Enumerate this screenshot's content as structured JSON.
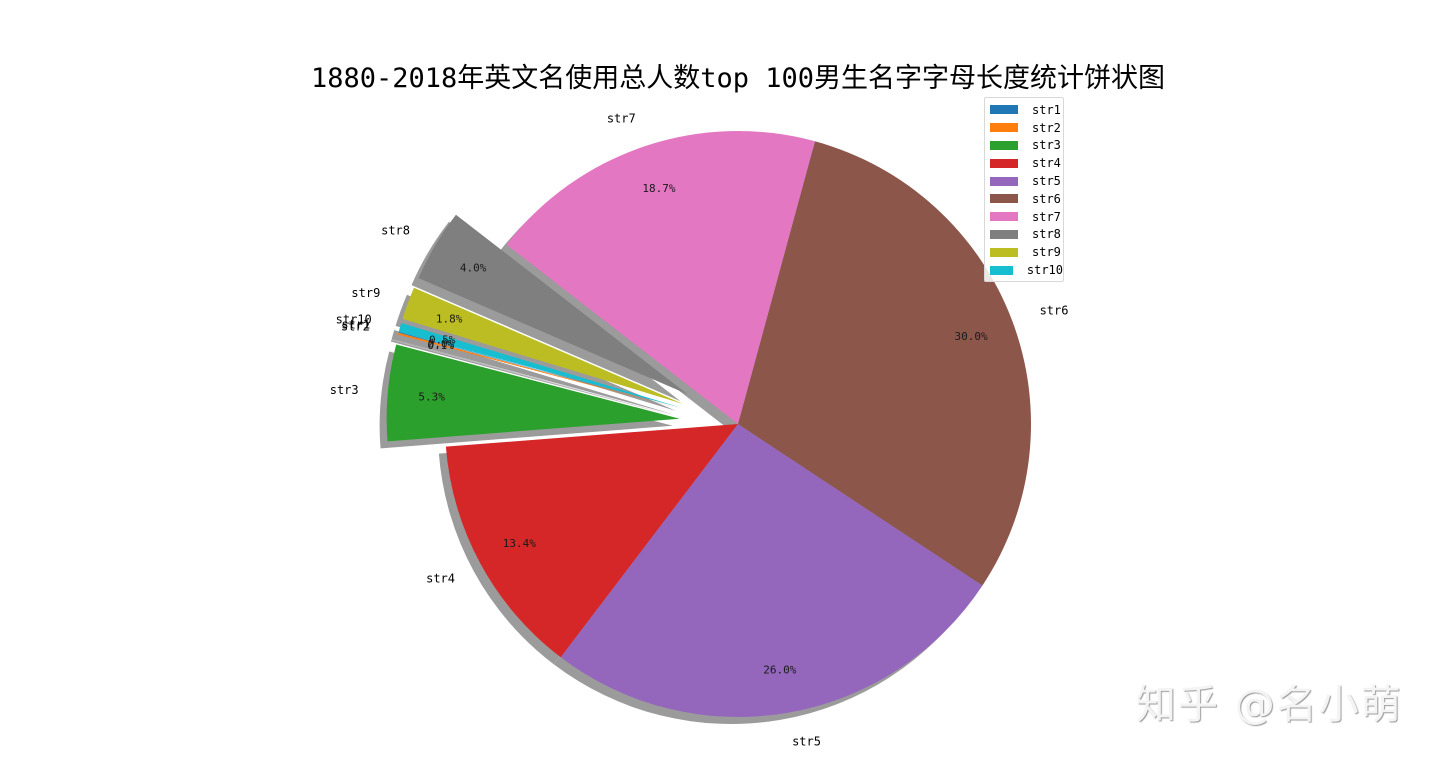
{
  "chart_data": {
    "type": "pie",
    "title": "1880-2018年英文名使用总人数top 100男生名字字母长度统计饼状图",
    "labels": [
      "str1",
      "str2",
      "str3",
      "str4",
      "str5",
      "str6",
      "str7",
      "str8",
      "str9",
      "str10"
    ],
    "values": [
      0.0,
      0.1,
      5.3,
      13.4,
      26.0,
      30.0,
      18.7,
      4.0,
      1.8,
      0.5
    ],
    "value_labels": [
      "0.0%",
      "0.1%",
      "5.3%",
      "13.4%",
      "26.0%",
      "30.0%",
      "18.7%",
      "4.0%",
      "1.8%",
      "0.5%"
    ],
    "colors": [
      "#1f77b4",
      "#ff7f0e",
      "#2ca02c",
      "#d62728",
      "#9467bd",
      "#8c564b",
      "#e377c2",
      "#7f7f7f",
      "#bcbd22",
      "#17becf"
    ],
    "explode": [
      0.2,
      0.2,
      0.2,
      0,
      0,
      0,
      0,
      0.2,
      0.2,
      0.2
    ],
    "startangle": 164.8,
    "shadow": true,
    "legend_position": "upper right",
    "legend": [
      "str1",
      "str2",
      "str3",
      "str4",
      "str5",
      "str6",
      "str7",
      "str8",
      "str9",
      "str10"
    ]
  },
  "title": "1880-2018年英文名使用总人数top 100男生名字字母长度统计饼状图",
  "watermark": "知乎 @名小萌"
}
